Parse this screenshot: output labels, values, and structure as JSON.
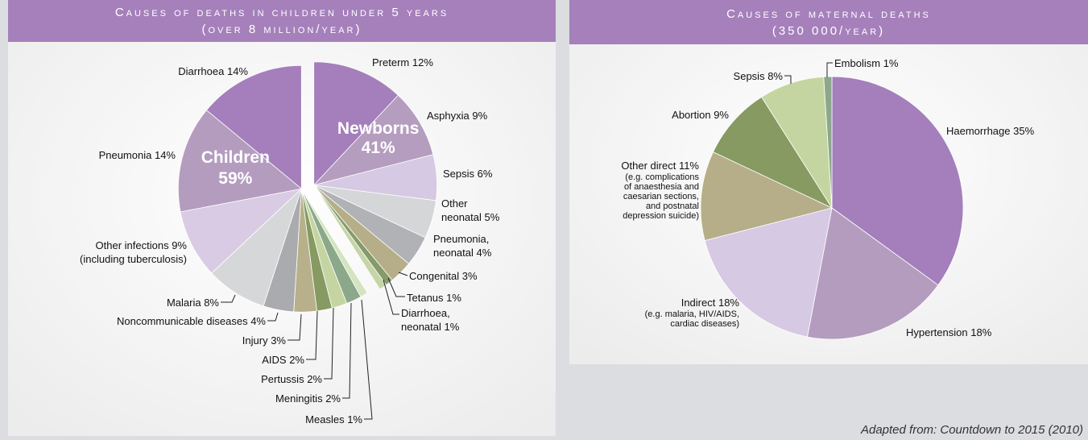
{
  "chart_data": [
    {
      "type": "pie",
      "title": "Causes of deaths in children under 5 years",
      "subtitle": "(over 8 million/year)",
      "categories": [
        "Preterm",
        "Asphyxia",
        "Sepsis",
        "Other neonatal",
        "Pneumonia, neonatal",
        "Congenital",
        "Tetanus",
        "Diarrhoea, neonatal",
        "Measles",
        "Meningitis",
        "Pertussis",
        "AIDS",
        "Injury",
        "Noncommunicable diseases",
        "Malaria",
        "Other infections",
        "Pneumonia",
        "Diarrhoea"
      ],
      "values": [
        12,
        9,
        6,
        5,
        4,
        3,
        1,
        1,
        1,
        2,
        2,
        2,
        3,
        4,
        8,
        9,
        14,
        14
      ],
      "value_labels": [
        "12%",
        "9%",
        "6%",
        "5%",
        "4%",
        "3%",
        "1%",
        "1%",
        "1%",
        "2%",
        "2%",
        "2%",
        "3%",
        "4%",
        "8%",
        "9%",
        "14%",
        "14%"
      ],
      "colors": [
        "#a47fbb",
        "#b59dbf",
        "#d6c9e3",
        "#d5d6d8",
        "#b0b2b5",
        "#b5ae88",
        "#869a6a",
        "#c5d5a8",
        "#d3e4bf",
        "#8ba88a",
        "#c5d5a1",
        "#869a61",
        "#b8b08a",
        "#a9abae",
        "#d6d7d9",
        "#d9cbe4",
        "#b49cbf",
        "#a47fbb"
      ],
      "notes": [
        null,
        null,
        null,
        null,
        null,
        null,
        null,
        null,
        null,
        null,
        null,
        null,
        null,
        null,
        null,
        "(including tuberculosis)",
        null,
        null
      ],
      "groups": {
        "names": [
          "Newborns",
          "Children"
        ],
        "values": [
          41,
          59
        ],
        "value_labels": [
          "41%",
          "59%"
        ]
      }
    },
    {
      "type": "pie",
      "title": "Causes of maternal deaths",
      "subtitle": "(350 000/year)",
      "categories": [
        "Haemorrhage",
        "Hypertension",
        "Indirect",
        "Other direct",
        "Abortion",
        "Sepsis",
        "Embolism"
      ],
      "values": [
        35,
        18,
        18,
        11,
        9,
        8,
        1
      ],
      "value_labels": [
        "35%",
        "18%",
        "18%",
        "11%",
        "9%",
        "8%",
        "1%"
      ],
      "colors": [
        "#a47fbb",
        "#b49cbf",
        "#d6c9e3",
        "#b5ae88",
        "#869a61",
        "#c5d5a1",
        "#8ba88a"
      ],
      "notes": [
        null,
        null,
        [
          "(e.g. malaria, HIV/AIDS,",
          "cardiac diseases)"
        ],
        [
          "(e.g. complications",
          "of anaesthesia and",
          "caesarian sections,",
          "and postnatal",
          "depression suicide)"
        ],
        null,
        null,
        null
      ]
    }
  ],
  "source": "Adapted from: Countdown to 2015 (2010)"
}
